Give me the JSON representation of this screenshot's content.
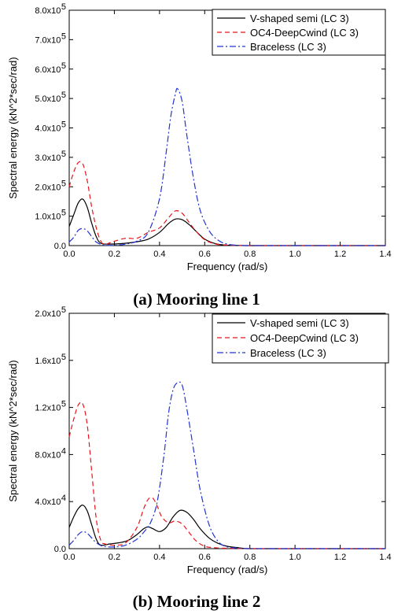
{
  "figure": {
    "captions": [
      "(a) Mooring line 1",
      "(b) Mooring line 2"
    ]
  },
  "chart_data": [
    {
      "type": "line",
      "xlabel": "Frequency (rad/s)",
      "ylabel": "Spectral energy (kN^2*sec/rad)",
      "xlim": [
        0.0,
        1.4
      ],
      "ylim": [
        0,
        800000
      ],
      "x_ticks": [
        "0.0",
        "0.2",
        "0.4",
        "0.6",
        "0.8",
        "1.0",
        "1.2",
        "1.4"
      ],
      "x_tick_values": [
        0.0,
        0.2,
        0.4,
        0.6,
        0.8,
        1.0,
        1.2,
        1.4
      ],
      "y_tick_values": [
        0,
        100000,
        200000,
        300000,
        400000,
        500000,
        600000,
        700000,
        800000
      ],
      "y_ticks": [
        {
          "base": "0.0",
          "exp": ""
        },
        {
          "base": "1.0x10",
          "exp": "5"
        },
        {
          "base": "2.0x10",
          "exp": "5"
        },
        {
          "base": "3.0x10",
          "exp": "5"
        },
        {
          "base": "4.0x10",
          "exp": "5"
        },
        {
          "base": "5.0x10",
          "exp": "5"
        },
        {
          "base": "6.0x10",
          "exp": "5"
        },
        {
          "base": "7.0x10",
          "exp": "5"
        },
        {
          "base": "8.0x10",
          "exp": "5"
        }
      ],
      "legend_position": "top-right",
      "grid": false,
      "series": [
        {
          "name": "V-shaped semi (LC 3)",
          "color": "#000000",
          "dash": "solid",
          "x": [
            0.0,
            0.02,
            0.04,
            0.06,
            0.08,
            0.1,
            0.12,
            0.14,
            0.18,
            0.25,
            0.3,
            0.35,
            0.4,
            0.44,
            0.47,
            0.5,
            0.53,
            0.56,
            0.6,
            0.65,
            0.7,
            0.75,
            0.8,
            1.0,
            1.4
          ],
          "y": [
            65000,
            105000,
            145000,
            158000,
            130000,
            75000,
            30000,
            8000,
            5000,
            8000,
            13000,
            22000,
            45000,
            75000,
            90000,
            88000,
            72000,
            50000,
            22000,
            6000,
            1500,
            500,
            0,
            0,
            0
          ]
        },
        {
          "name": "OC4-DeepCwind (LC 3)",
          "color": "#e8141c",
          "dash": "6,4",
          "x": [
            0.0,
            0.02,
            0.04,
            0.06,
            0.08,
            0.1,
            0.12,
            0.14,
            0.16,
            0.2,
            0.25,
            0.3,
            0.35,
            0.4,
            0.44,
            0.47,
            0.5,
            0.53,
            0.56,
            0.6,
            0.65,
            0.7,
            0.75,
            0.8,
            1.0,
            1.4
          ],
          "y": [
            200000,
            250000,
            282000,
            278000,
            220000,
            130000,
            60000,
            15000,
            5000,
            15000,
            25000,
            25000,
            45000,
            60000,
            95000,
            118000,
            110000,
            80000,
            50000,
            20000,
            5000,
            1500,
            500,
            0,
            0,
            0
          ]
        },
        {
          "name": "Braceless (LC 3)",
          "color": "#2133d6",
          "dash": "8,3,2,3",
          "x": [
            0.0,
            0.02,
            0.04,
            0.06,
            0.08,
            0.1,
            0.12,
            0.15,
            0.2,
            0.25,
            0.3,
            0.35,
            0.4,
            0.43,
            0.45,
            0.47,
            0.48,
            0.5,
            0.52,
            0.55,
            0.58,
            0.62,
            0.66,
            0.7,
            0.75,
            0.8,
            1.0,
            1.4
          ],
          "y": [
            12000,
            28000,
            52000,
            58000,
            50000,
            30000,
            12000,
            2000,
            1000,
            5000,
            15000,
            45000,
            160000,
            320000,
            440000,
            515000,
            533000,
            490000,
            380000,
            230000,
            120000,
            50000,
            18000,
            5000,
            1000,
            0,
            0,
            0
          ]
        }
      ]
    },
    {
      "type": "line",
      "xlabel": "Frequency (rad/s)",
      "ylabel": "Spectral energy (kN^2*sec/rad)",
      "xlim": [
        0.0,
        1.4
      ],
      "ylim": [
        0,
        200000
      ],
      "x_ticks": [
        "0.0",
        "0.2",
        "0.4",
        "0.6",
        "0.8",
        "1.0",
        "1.2",
        "1.4"
      ],
      "x_tick_values": [
        0.0,
        0.2,
        0.4,
        0.6,
        0.8,
        1.0,
        1.2,
        1.4
      ],
      "y_tick_values": [
        0,
        40000,
        80000,
        120000,
        160000,
        200000
      ],
      "y_ticks": [
        {
          "base": "0.0",
          "exp": ""
        },
        {
          "base": "4.0x10",
          "exp": "4"
        },
        {
          "base": "8.0x10",
          "exp": "4"
        },
        {
          "base": "1.2x10",
          "exp": "5"
        },
        {
          "base": "1.6x10",
          "exp": "5"
        },
        {
          "base": "2.0x10",
          "exp": "5"
        }
      ],
      "legend_position": "top-right",
      "grid": false,
      "series": [
        {
          "name": "V-shaped semi (LC 3)",
          "color": "#000000",
          "dash": "solid",
          "x": [
            0.0,
            0.02,
            0.04,
            0.06,
            0.08,
            0.1,
            0.12,
            0.14,
            0.18,
            0.22,
            0.26,
            0.3,
            0.33,
            0.35,
            0.37,
            0.4,
            0.43,
            0.46,
            0.49,
            0.52,
            0.55,
            0.58,
            0.62,
            0.66,
            0.7,
            0.75,
            0.8,
            1.0,
            1.4
          ],
          "y": [
            18000,
            27000,
            34000,
            37000,
            32000,
            20000,
            8000,
            3000,
            4000,
            5000,
            7000,
            12000,
            17000,
            18500,
            17000,
            14500,
            18000,
            27000,
            32500,
            31000,
            25000,
            17000,
            9000,
            4500,
            2000,
            800,
            0,
            0,
            0
          ]
        },
        {
          "name": "OC4-DeepCwind (LC 3)",
          "color": "#e8141c",
          "dash": "6,4",
          "x": [
            0.0,
            0.02,
            0.04,
            0.06,
            0.08,
            0.1,
            0.12,
            0.14,
            0.16,
            0.2,
            0.25,
            0.3,
            0.33,
            0.35,
            0.37,
            0.39,
            0.41,
            0.44,
            0.47,
            0.5,
            0.53,
            0.56,
            0.6,
            0.65,
            0.7,
            0.75,
            0.8,
            1.0,
            1.4
          ],
          "y": [
            95000,
            110000,
            122000,
            123000,
            105000,
            65000,
            25000,
            7000,
            4000,
            3000,
            5000,
            18000,
            34000,
            42000,
            43000,
            36000,
            27000,
            22000,
            23500,
            21000,
            14000,
            7000,
            2000,
            700,
            300,
            100,
            0,
            0,
            0
          ]
        },
        {
          "name": "Braceless (LC 3)",
          "color": "#2133d6",
          "dash": "8,3,2,3",
          "x": [
            0.0,
            0.02,
            0.04,
            0.06,
            0.08,
            0.1,
            0.12,
            0.15,
            0.2,
            0.25,
            0.3,
            0.33,
            0.36,
            0.39,
            0.42,
            0.44,
            0.46,
            0.48,
            0.5,
            0.52,
            0.55,
            0.58,
            0.62,
            0.66,
            0.7,
            0.75,
            0.8,
            1.0,
            1.4
          ],
          "y": [
            3000,
            7000,
            12000,
            14500,
            13000,
            9000,
            5000,
            2000,
            1500,
            3000,
            8000,
            14000,
            22000,
            40000,
            80000,
            115000,
            135000,
            141000,
            139000,
            120000,
            85000,
            50000,
            20000,
            6000,
            1500,
            500,
            0,
            0,
            0
          ]
        }
      ]
    }
  ]
}
